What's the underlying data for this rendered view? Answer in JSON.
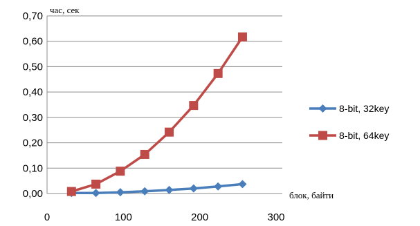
{
  "chart_data": {
    "type": "line",
    "ylabel": "час, сек",
    "xlabel": "блок, байти",
    "xlim": [
      0,
      300
    ],
    "ylim": [
      0,
      0.7
    ],
    "x_ticks": [
      "0",
      "100",
      "200",
      "300"
    ],
    "y_ticks": [
      "0,00",
      "0,10",
      "0,20",
      "0,30",
      "0,40",
      "0,50",
      "0,60",
      "0,70"
    ],
    "grid": true,
    "legend_position": "right",
    "series": [
      {
        "name": "8-bit, 32key",
        "color": "#4a7ebb",
        "marker": "diamond",
        "x": [
          32,
          64,
          96,
          128,
          160,
          192,
          224,
          256
        ],
        "y": [
          0.002,
          0.002,
          0.005,
          0.009,
          0.014,
          0.02,
          0.028,
          0.037
        ]
      },
      {
        "name": "8-bit, 64key",
        "color": "#be4b48",
        "marker": "square",
        "x": [
          32,
          64,
          96,
          128,
          160,
          192,
          224,
          256
        ],
        "y": [
          0.008,
          0.037,
          0.088,
          0.154,
          0.242,
          0.347,
          0.473,
          0.617
        ]
      }
    ]
  }
}
